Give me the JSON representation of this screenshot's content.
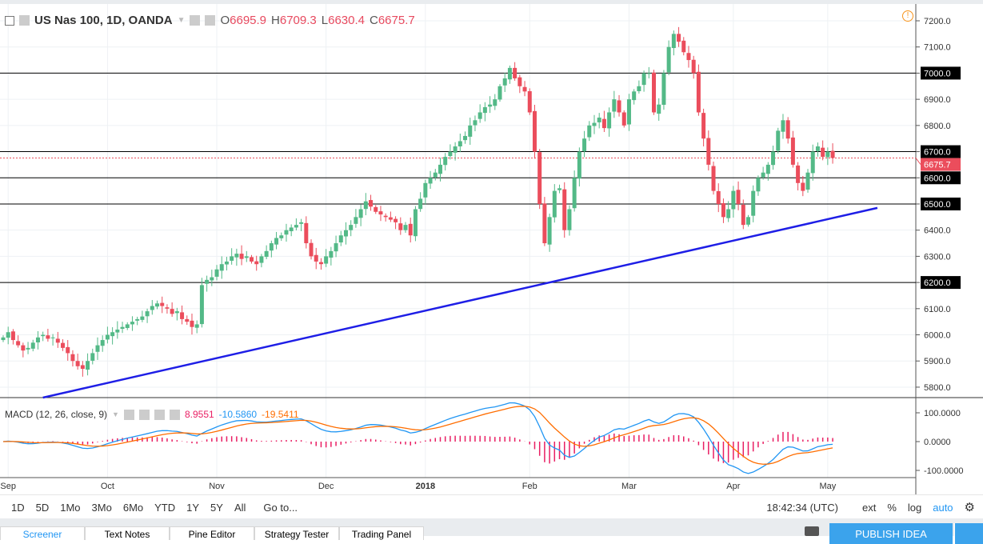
{
  "header": {
    "symbol": "US Nas 100, 1D, OANDA",
    "o_label": "O",
    "o": "6695.9",
    "h_label": "H",
    "h": "6709.3",
    "l_label": "L",
    "l": "6630.4",
    "c_label": "C",
    "c": "6675.7"
  },
  "macd": {
    "title": "MACD (12, 26, close, 9)",
    "hist": "8.9551",
    "macd": "-10.5860",
    "signal": "-19.5411"
  },
  "toolbar": {
    "ranges": [
      "1D",
      "5D",
      "1Mo",
      "3Mo",
      "6Mo",
      "YTD",
      "1Y",
      "5Y",
      "All"
    ],
    "goto": "Go to...",
    "time": "18:42:34 (UTC)",
    "ext": "ext",
    "pct": "%",
    "log": "log",
    "auto": "auto"
  },
  "tabs": [
    "Screener",
    "Text Notes",
    "Pine Editor",
    "Strategy Tester",
    "Trading Panel"
  ],
  "publish": "PUBLISH IDEA",
  "colors": {
    "up": "#53b987",
    "down": "#eb4d5c",
    "trend": "#1e1ee6",
    "macd": "#2196f3",
    "signal": "#ff6d00",
    "hist": "#e91e63"
  },
  "chart_data": {
    "type": "candlestick",
    "price_ticks": [
      "7200.0",
      "7100.0",
      "7000.0",
      "6900.0",
      "6800.0",
      "6700.0",
      "6600.0",
      "6500.0",
      "6400.0",
      "6300.0",
      "6200.0",
      "6100.0",
      "6000.0",
      "5900.0",
      "5800.0"
    ],
    "macd_ticks": [
      "100.0000",
      "0.0000",
      "-100.0000"
    ],
    "x_labels": [
      "Sep",
      "Oct",
      "Nov",
      "Dec",
      "2018",
      "Feb",
      "Mar",
      "Apr",
      "May"
    ],
    "x_label_index": [
      1,
      21,
      43,
      65,
      85,
      106,
      126,
      147,
      166
    ],
    "horizontal_levels": [
      "7000.0",
      "6700.0",
      "6600.0",
      "6500.0",
      "6200.0"
    ],
    "last_price": "6675.7",
    "trendline": {
      "from": [
        8,
        5760
      ],
      "to": [
        176,
        6485
      ]
    },
    "closes": [
      5990,
      6010,
      5980,
      5960,
      5940,
      5950,
      5970,
      5990,
      6000,
      5985,
      5990,
      5970,
      5950,
      5930,
      5900,
      5880,
      5870,
      5900,
      5930,
      5960,
      5980,
      6000,
      6010,
      6020,
      6030,
      6040,
      6050,
      6060,
      6070,
      6090,
      6110,
      6120,
      6110,
      6100,
      6080,
      6090,
      6060,
      6050,
      6030,
      6040,
      6190,
      6210,
      6220,
      6250,
      6270,
      6280,
      6300,
      6310,
      6290,
      6300,
      6280,
      6270,
      6300,
      6320,
      6350,
      6370,
      6380,
      6400,
      6410,
      6420,
      6430,
      6350,
      6300,
      6280,
      6270,
      6300,
      6320,
      6350,
      6380,
      6400,
      6420,
      6450,
      6480,
      6510,
      6490,
      6470,
      6460,
      6450,
      6440,
      6430,
      6400,
      6420,
      6380,
      6480,
      6520,
      6580,
      6600,
      6620,
      6650,
      6680,
      6700,
      6720,
      6740,
      6760,
      6800,
      6820,
      6850,
      6870,
      6880,
      6900,
      6950,
      6980,
      7020,
      6980,
      6950,
      6930,
      6850,
      6700,
      6500,
      6350,
      6450,
      6550,
      6560,
      6400,
      6480,
      6600,
      6700,
      6750,
      6800,
      6810,
      6830,
      6790,
      6850,
      6900,
      6850,
      6800,
      6900,
      6930,
      6950,
      7000,
      7000,
      6850,
      6880,
      7000,
      7100,
      7150,
      7120,
      7080,
      7050,
      7000,
      6850,
      6750,
      6650,
      6550,
      6500,
      6450,
      6480,
      6550,
      6500,
      6420,
      6450,
      6550,
      6600,
      6620,
      6650,
      6700,
      6780,
      6820,
      6750,
      6650,
      6580,
      6550,
      6620,
      6700,
      6720,
      6680,
      6700,
      6676
    ]
  }
}
